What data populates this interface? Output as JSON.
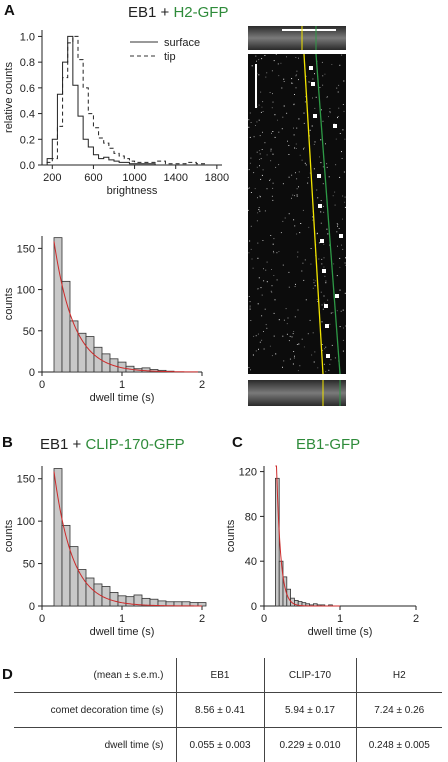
{
  "panels": {
    "A": {
      "letter": "A",
      "title_prefix": "EB1 + ",
      "title_green": "H2-GFP"
    },
    "B": {
      "letter": "B",
      "title_prefix": "EB1 + ",
      "title_green": "CLIP-170-GFP"
    },
    "C": {
      "letter": "C",
      "title_green": "EB1-GFP"
    },
    "D": {
      "letter": "D"
    }
  },
  "colors": {
    "green_text": "#2e8b3a",
    "bar_fill": "#c8c8c8",
    "fit_curve": "#cc2a2a",
    "kymo_yellow": "#f2e400",
    "kymo_green": "#2e9a46"
  },
  "table": {
    "header": [
      "(mean ± s.e.m.)",
      "EB1",
      "CLIP-170",
      "H2"
    ],
    "rows": [
      {
        "label": "comet decoration time (s)",
        "values": [
          "8.56 ± 0.41",
          "5.94 ± 0.17",
          "7.24 ± 0.26"
        ]
      },
      {
        "label": "dwell time (s)",
        "values": [
          "0.055 ± 0.003",
          "0.229 ± 0.010",
          "0.248 ± 0.005"
        ]
      }
    ]
  },
  "chart_data": [
    {
      "id": "brightness",
      "type": "line",
      "xlabel": "brightness",
      "ylabel": "relative counts",
      "xlim": [
        100,
        1850
      ],
      "ylim": [
        0,
        1.05
      ],
      "xticks": [
        200,
        600,
        1000,
        1400,
        1800
      ],
      "xtick_labels": [
        "200",
        "600",
        "1000",
        "1400",
        "1800"
      ],
      "yticks": [
        0,
        0.2,
        0.4,
        0.6,
        0.8,
        1.0
      ],
      "ytick_labels": [
        "0.0",
        "0.2",
        "0.4",
        "0.6",
        "0.8",
        "1.0"
      ],
      "legend": "top-right",
      "series": [
        {
          "name": "surface",
          "style": "solid",
          "x": [
            100,
            150,
            200,
            250,
            300,
            350,
            400,
            450,
            500,
            550,
            600,
            650,
            700,
            750,
            800,
            850,
            900,
            950,
            1000,
            1100,
            1200,
            1300,
            1400,
            1500,
            1600,
            1700,
            1800
          ],
          "y": [
            0,
            0.05,
            0.2,
            0.55,
            0.8,
            1.0,
            0.62,
            0.38,
            0.2,
            0.14,
            0.08,
            0.05,
            0.06,
            0.04,
            0.03,
            0.02,
            0.02,
            0.01,
            0.01,
            0.01,
            0.0,
            0.0,
            0.0,
            0.0,
            0.0,
            0.0,
            0.0
          ]
        },
        {
          "name": "tip",
          "style": "dashed",
          "x": [
            100,
            150,
            200,
            250,
            300,
            350,
            400,
            450,
            500,
            550,
            600,
            650,
            700,
            750,
            800,
            850,
            900,
            950,
            1000,
            1100,
            1200,
            1300,
            1400,
            1500,
            1600,
            1700,
            1800
          ],
          "y": [
            0,
            0.02,
            0.05,
            0.3,
            0.68,
            0.95,
            1.0,
            0.82,
            0.6,
            0.4,
            0.29,
            0.21,
            0.17,
            0.13,
            0.09,
            0.07,
            0.05,
            0.03,
            0.02,
            0.02,
            0.03,
            0.01,
            0.01,
            0.02,
            0.01,
            0.0,
            0.0
          ]
        }
      ]
    },
    {
      "id": "dwell_A",
      "type": "bar",
      "xlabel": "dwell time (s)",
      "ylabel": "counts",
      "xlim": [
        0,
        2
      ],
      "ylim": [
        0,
        165
      ],
      "xticks": [
        0,
        1,
        2
      ],
      "xtick_labels": [
        "0",
        "1",
        "2"
      ],
      "yticks": [
        0,
        50,
        100,
        150
      ],
      "ytick_labels": [
        "0",
        "50",
        "100",
        "150"
      ],
      "bin_width": 0.1,
      "bin_starts": [
        0.15,
        0.25,
        0.35,
        0.45,
        0.55,
        0.65,
        0.75,
        0.85,
        0.95,
        1.05,
        1.15,
        1.25,
        1.35,
        1.45,
        1.55
      ],
      "values": [
        163,
        110,
        62,
        47,
        43,
        30,
        22,
        16,
        12,
        7,
        4,
        5,
        3,
        2,
        1
      ],
      "fit": {
        "type": "exponential",
        "amplitude": 290,
        "tau": 0.248,
        "x_start": 0.15,
        "x_end": 1.95
      }
    },
    {
      "id": "dwell_B",
      "type": "bar",
      "xlabel": "dwell time (s)",
      "ylabel": "counts",
      "xlim": [
        0,
        2
      ],
      "ylim": [
        0,
        165
      ],
      "xticks": [
        0,
        1,
        2
      ],
      "xtick_labels": [
        "0",
        "1",
        "2"
      ],
      "yticks": [
        0,
        50,
        100,
        150
      ],
      "ytick_labels": [
        "0",
        "50",
        "100",
        "150"
      ],
      "bin_width": 0.1,
      "bin_starts": [
        0.15,
        0.25,
        0.35,
        0.45,
        0.55,
        0.65,
        0.75,
        0.85,
        0.95,
        1.05,
        1.15,
        1.25,
        1.35,
        1.45,
        1.55,
        1.65,
        1.75,
        1.85,
        1.95
      ],
      "values": [
        162,
        95,
        70,
        43,
        33,
        26,
        23,
        16,
        12,
        11,
        13,
        9,
        8,
        6,
        5,
        5,
        5,
        4,
        4
      ],
      "fit": {
        "type": "exponential",
        "amplitude": 305,
        "tau": 0.229,
        "x_start": 0.15,
        "x_end": 2.0
      }
    },
    {
      "id": "dwell_C",
      "type": "bar",
      "xlabel": "dwell time (s)",
      "ylabel": "counts",
      "xlim": [
        0,
        2
      ],
      "ylim": [
        0,
        125
      ],
      "xticks": [
        0,
        1,
        2
      ],
      "xtick_labels": [
        "0",
        "1",
        "2"
      ],
      "yticks": [
        0,
        40,
        80,
        120
      ],
      "ytick_labels": [
        "0",
        "40",
        "80",
        "120"
      ],
      "bin_width": 0.05,
      "bin_starts": [
        0.15,
        0.2,
        0.25,
        0.3,
        0.35,
        0.4,
        0.45,
        0.5,
        0.55,
        0.6,
        0.65,
        0.7,
        0.75,
        0.8,
        0.85
      ],
      "values": [
        114,
        40,
        26,
        15,
        7,
        5,
        4,
        3,
        2,
        1,
        2,
        1,
        1,
        0,
        1
      ],
      "fit": {
        "type": "exponential",
        "amplitude": 2500,
        "tau": 0.055,
        "x_start": 0.15,
        "x_end": 1.0
      }
    }
  ]
}
